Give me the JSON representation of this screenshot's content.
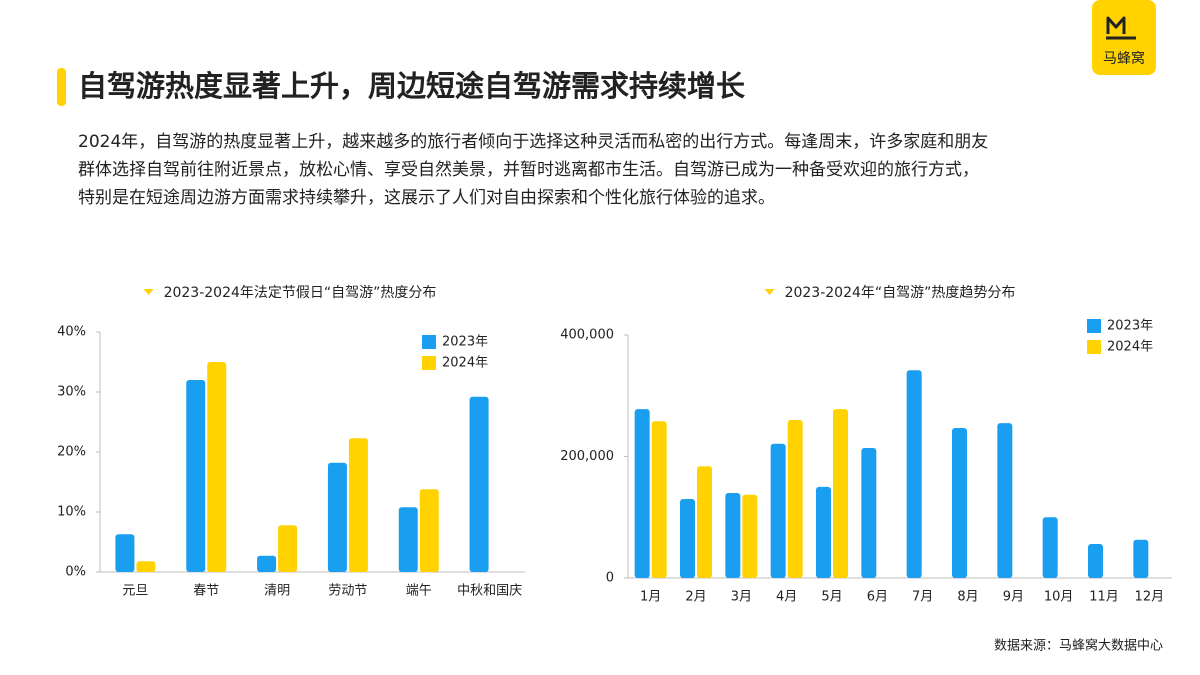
{
  "logo": "马蜂窝",
  "title": "自驾游热度显著上升，周边短途自驾游需求持续增长",
  "paragraph": [
    "2024年，自驾游的热度显著上升，越来越多的旅行者倾向于选择这种灵活而私密的出行方式。每逢周末，许多家庭和朋友",
    "群体选择自驾前往附近景点，放松心情、享受自然美景，并暂时逃离都市生活。自驾游已成为一种备受欢迎的旅行方式，",
    "特别是在短途周边游方面需求持续攀升，这展示了人们对自由探索和个性化旅行体验的追求。"
  ],
  "source": "数据来源：马蜂窝大数据中心",
  "chart_data": [
    {
      "type": "bar",
      "title": "2023-2024年法定节假日“自驾游”热度分布",
      "categories": [
        "元旦",
        "春节",
        "清明",
        "劳动节",
        "端午",
        "中秋和国庆"
      ],
      "series": [
        {
          "name": "2023年",
          "color": "#1a9ef0",
          "values": [
            6.3,
            32,
            2.7,
            18.2,
            10.8,
            29.2
          ]
        },
        {
          "name": "2024年",
          "color": "#ffd200",
          "values": [
            1.8,
            35,
            7.8,
            22.3,
            13.8,
            null
          ]
        }
      ],
      "ylim": [
        0,
        40
      ],
      "yticks": [
        {
          "value": 0,
          "label": "0%"
        },
        {
          "value": 10,
          "label": "10%"
        },
        {
          "value": 20,
          "label": "20%"
        },
        {
          "value": 30,
          "label": "30%"
        },
        {
          "value": 40,
          "label": "40%"
        }
      ],
      "legend": "top-right"
    },
    {
      "type": "bar",
      "title": "2023-2024年“自驾游”热度趋势分布",
      "categories": [
        "1月",
        "2月",
        "3月",
        "4月",
        "5月",
        "6月",
        "7月",
        "8月",
        "9月",
        "10月",
        "11月",
        "12月"
      ],
      "series": [
        {
          "name": "2023年",
          "color": "#1a9ef0",
          "values": [
            278000,
            130000,
            140000,
            221000,
            150000,
            214000,
            342000,
            247000,
            255000,
            100000,
            56000,
            63000
          ]
        },
        {
          "name": "2024年",
          "color": "#ffd200",
          "values": [
            258000,
            184000,
            137000,
            260000,
            278000,
            null,
            null,
            null,
            null,
            null,
            null,
            null
          ]
        }
      ],
      "ylim": [
        0,
        400000
      ],
      "yticks": [
        0,
        {
          "value": 200000,
          "label": "200,000"
        },
        {
          "value": 400000,
          "label": "400,000"
        }
      ],
      "legend": "top-right"
    }
  ]
}
